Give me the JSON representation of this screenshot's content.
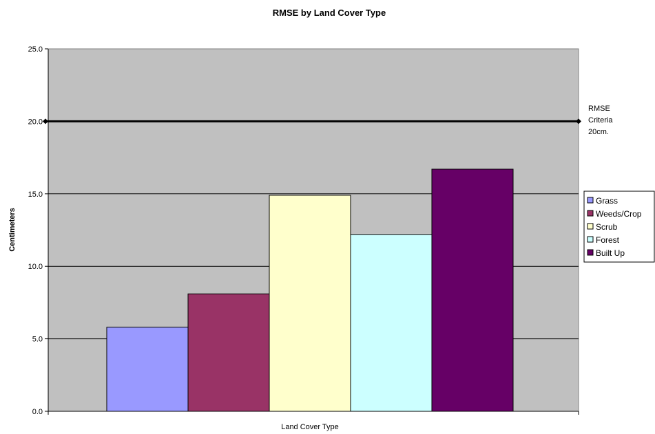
{
  "chart_data": {
    "type": "bar",
    "title": "RMSE by Land Cover Type",
    "xlabel": "Land Cover Type",
    "ylabel": "Centimeters",
    "ylim": [
      0,
      25
    ],
    "yticks": [
      "0.0",
      "5.0",
      "10.0",
      "15.0",
      "20.0",
      "25.0"
    ],
    "grid": true,
    "legend_position": "right",
    "plot_background": "#c0c0c0",
    "series": [
      {
        "name": "Grass",
        "value": 5.8,
        "color": "#9999ff"
      },
      {
        "name": "Weeds/Crop",
        "value": 8.1,
        "color": "#993366"
      },
      {
        "name": "Scrub",
        "value": 14.9,
        "color": "#ffffcc"
      },
      {
        "name": "Forest",
        "value": 12.2,
        "color": "#ccffff"
      },
      {
        "name": "Built Up",
        "value": 16.7,
        "color": "#660066"
      }
    ],
    "reference_line": {
      "value": 20,
      "color": "#000000",
      "label_lines": [
        "RMSE",
        "Criteria",
        "20cm."
      ]
    }
  }
}
